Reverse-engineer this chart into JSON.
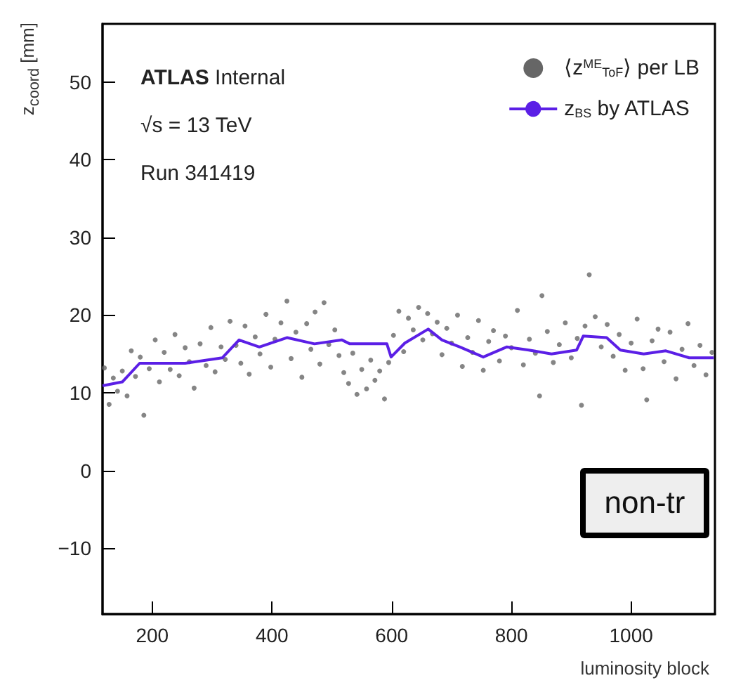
{
  "chart_data": {
    "type": "scatter",
    "xlabel": "luminosity block",
    "ylabel": "z$_{coord}$ [mm]",
    "annotations": [
      "ATLAS Internal",
      "√s = 13 TeV",
      "Run 341419",
      "non-tr"
    ],
    "xlim": [
      117,
      1140
    ],
    "xticks": [
      200,
      400,
      600,
      800,
      1000
    ],
    "ylim": [
      -18.5,
      57.5
    ],
    "yticks": [
      -10,
      0,
      10,
      20,
      30,
      40,
      50
    ],
    "grid": false,
    "legend": "top right",
    "series": [
      {
        "name": "⟨z$^{ME}$$_{ToF}$⟩ per LB",
        "marker": "circle",
        "color": "#666666",
        "x": [
          120,
          128,
          135,
          142,
          150,
          158,
          165,
          172,
          180,
          186,
          195,
          205,
          212,
          220,
          230,
          238,
          245,
          255,
          262,
          270,
          280,
          290,
          298,
          305,
          315,
          322,
          330,
          340,
          348,
          355,
          362,
          372,
          380,
          390,
          398,
          405,
          415,
          425,
          432,
          440,
          450,
          458,
          465,
          472,
          480,
          487,
          495,
          505,
          512,
          520,
          528,
          535,
          542,
          550,
          558,
          565,
          572,
          580,
          588,
          595,
          603,
          612,
          620,
          628,
          636,
          645,
          652,
          660,
          668,
          676,
          684,
          692,
          700,
          710,
          718,
          727,
          735,
          745,
          753,
          762,
          770,
          780,
          790,
          800,
          810,
          820,
          830,
          840,
          847,
          851,
          860,
          870,
          880,
          890,
          900,
          910,
          917,
          923,
          930,
          940,
          950,
          960,
          970,
          980,
          990,
          1000,
          1010,
          1020,
          1026,
          1035,
          1045,
          1055,
          1065,
          1075,
          1085,
          1095,
          1105,
          1115,
          1125,
          1135
        ],
        "values": [
          13.2,
          8.5,
          11.9,
          10.2,
          12.8,
          9.6,
          15.4,
          12.1,
          14.6,
          7.1,
          13.1,
          16.8,
          11.4,
          15.2,
          13.0,
          17.5,
          12.2,
          15.8,
          14.0,
          10.6,
          16.3,
          13.5,
          18.4,
          12.7,
          15.9,
          14.3,
          19.2,
          16.1,
          13.8,
          18.6,
          12.4,
          17.2,
          15.0,
          20.1,
          13.3,
          16.9,
          19.0,
          21.8,
          14.4,
          17.8,
          12.0,
          18.9,
          15.6,
          20.4,
          13.7,
          21.6,
          16.2,
          18.1,
          14.8,
          12.6,
          11.2,
          15.1,
          9.8,
          13.0,
          10.5,
          14.2,
          11.6,
          12.8,
          9.2,
          13.9,
          17.4,
          20.5,
          15.3,
          19.6,
          18.1,
          21.0,
          16.8,
          20.2,
          17.6,
          19.1,
          14.9,
          18.3,
          16.4,
          20.0,
          13.4,
          17.1,
          15.2,
          19.3,
          12.9,
          16.6,
          18.0,
          14.1,
          17.3,
          15.8,
          20.6,
          13.6,
          16.9,
          15.1,
          9.6,
          22.5,
          17.9,
          13.9,
          16.2,
          19.0,
          14.5,
          17.0,
          8.4,
          18.6,
          25.2,
          19.8,
          15.9,
          18.8,
          14.7,
          17.5,
          12.9,
          16.4,
          19.5,
          13.1,
          9.1,
          16.7,
          18.2,
          14.0,
          17.8,
          11.8,
          15.6,
          18.9,
          13.5,
          16.1,
          12.3,
          15.2
        ]
      },
      {
        "name": "z$_{BS}$ by ATLAS",
        "type": "line",
        "marker": "none",
        "color": "#5b1fe6",
        "x": [
          117,
          150,
          179,
          255,
          317,
          345,
          379,
          425,
          471,
          517,
          530,
          592,
          599,
          622,
          661,
          684,
          714,
          753,
          792,
          829,
          867,
          909,
          920,
          959,
          982,
          1021,
          1058,
          1097,
          1138
        ],
        "values": [
          10.9,
          11.4,
          13.8,
          13.8,
          14.5,
          16.8,
          15.9,
          17.1,
          16.3,
          16.8,
          16.3,
          16.3,
          14.6,
          16.4,
          18.2,
          16.8,
          15.9,
          14.6,
          15.9,
          15.5,
          15.0,
          15.5,
          17.3,
          17.1,
          15.5,
          15.0,
          15.4,
          14.5,
          14.5
        ]
      }
    ]
  }
}
